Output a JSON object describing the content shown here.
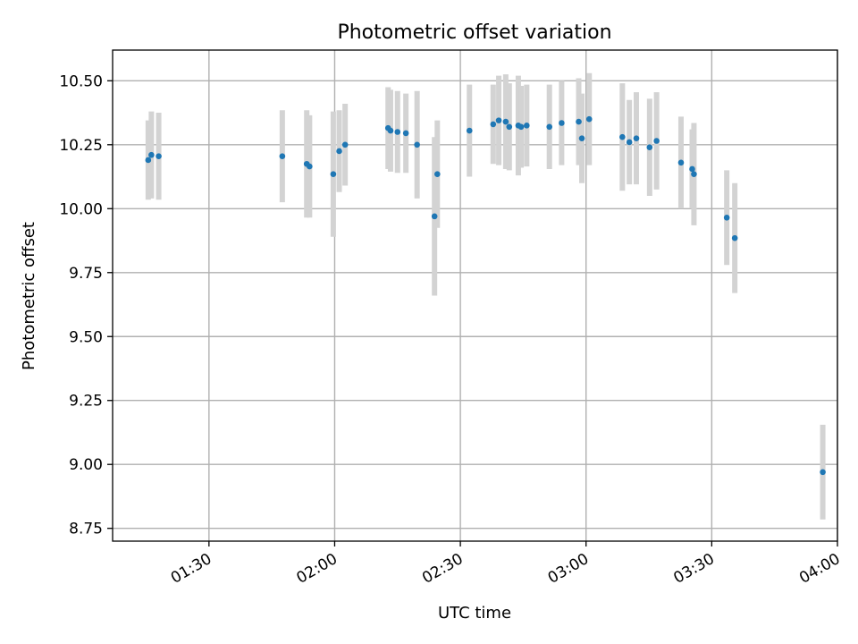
{
  "chart_data": {
    "type": "scatter",
    "title": "Photometric offset variation",
    "xlabel": "UTC time",
    "ylabel": "Photometric offset",
    "x_format": "HH:MM",
    "xlim": [
      "01:07",
      "04:00"
    ],
    "ylim": [
      8.7,
      10.62
    ],
    "x_ticks": [
      "01:30",
      "02:00",
      "02:30",
      "03:00",
      "03:30",
      "04:00"
    ],
    "y_ticks": [
      8.75,
      9.0,
      9.25,
      9.5,
      9.75,
      10.0,
      10.25,
      10.5
    ],
    "y_tick_labels": [
      "8.75",
      "9.00",
      "9.25",
      "9.50",
      "9.75",
      "10.00",
      "10.25",
      "10.50"
    ],
    "x_tick_rotation_deg": 30,
    "grid": true,
    "series": [
      {
        "marker": "point",
        "color": "#1f77b4",
        "errorbar_color": "#d3d3d3",
        "points": [
          {
            "x": "01:15:30",
            "y": 10.19,
            "err": 0.155
          },
          {
            "x": "01:16:15",
            "y": 10.21,
            "err": 0.17
          },
          {
            "x": "01:18:00",
            "y": 10.205,
            "err": 0.17
          },
          {
            "x": "01:47:30",
            "y": 10.205,
            "err": 0.18
          },
          {
            "x": "01:53:20",
            "y": 10.175,
            "err": 0.21
          },
          {
            "x": "01:54:00",
            "y": 10.165,
            "err": 0.2
          },
          {
            "x": "01:59:40",
            "y": 10.135,
            "err": 0.245
          },
          {
            "x": "02:01:05",
            "y": 10.225,
            "err": 0.16
          },
          {
            "x": "02:02:30",
            "y": 10.25,
            "err": 0.16
          },
          {
            "x": "02:12:45",
            "y": 10.315,
            "err": 0.16
          },
          {
            "x": "02:13:20",
            "y": 10.305,
            "err": 0.16
          },
          {
            "x": "02:15:00",
            "y": 10.3,
            "err": 0.16
          },
          {
            "x": "02:17:00",
            "y": 10.295,
            "err": 0.155
          },
          {
            "x": "02:19:40",
            "y": 10.25,
            "err": 0.21
          },
          {
            "x": "02:23:50",
            "y": 9.97,
            "err": 0.31
          },
          {
            "x": "02:24:30",
            "y": 10.135,
            "err": 0.21
          },
          {
            "x": "02:32:10",
            "y": 10.305,
            "err": 0.18
          },
          {
            "x": "02:37:50",
            "y": 10.33,
            "err": 0.155
          },
          {
            "x": "02:39:10",
            "y": 10.345,
            "err": 0.175
          },
          {
            "x": "02:40:50",
            "y": 10.34,
            "err": 0.185
          },
          {
            "x": "02:41:40",
            "y": 10.32,
            "err": 0.17
          },
          {
            "x": "02:43:50",
            "y": 10.325,
            "err": 0.195
          },
          {
            "x": "02:44:30",
            "y": 10.32,
            "err": 0.16
          },
          {
            "x": "02:45:50",
            "y": 10.325,
            "err": 0.16
          },
          {
            "x": "02:51:15",
            "y": 10.32,
            "err": 0.165
          },
          {
            "x": "02:54:10",
            "y": 10.335,
            "err": 0.165
          },
          {
            "x": "02:58:15",
            "y": 10.34,
            "err": 0.17
          },
          {
            "x": "02:59:00",
            "y": 10.275,
            "err": 0.175
          },
          {
            "x": "03:00:45",
            "y": 10.35,
            "err": 0.18
          },
          {
            "x": "03:08:40",
            "y": 10.28,
            "err": 0.21
          },
          {
            "x": "03:10:20",
            "y": 10.26,
            "err": 0.165
          },
          {
            "x": "03:12:00",
            "y": 10.275,
            "err": 0.18
          },
          {
            "x": "03:15:10",
            "y": 10.24,
            "err": 0.19
          },
          {
            "x": "03:16:50",
            "y": 10.265,
            "err": 0.19
          },
          {
            "x": "03:22:40",
            "y": 10.18,
            "err": 0.18
          },
          {
            "x": "03:25:20",
            "y": 10.155,
            "err": 0.155
          },
          {
            "x": "03:25:45",
            "y": 10.135,
            "err": 0.2
          },
          {
            "x": "03:33:35",
            "y": 9.965,
            "err": 0.185
          },
          {
            "x": "03:35:30",
            "y": 9.885,
            "err": 0.215
          },
          {
            "x": "03:56:30",
            "y": 8.97,
            "err": 0.185
          }
        ]
      }
    ]
  }
}
